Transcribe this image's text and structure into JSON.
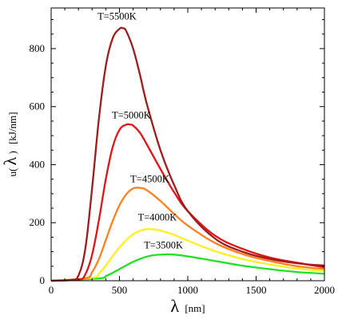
{
  "chart_data": {
    "type": "line",
    "title": "",
    "xlabel_symbol": "λ",
    "xlabel_unit": "[nm]",
    "ylabel_prefix": "u(",
    "ylabel_symbol": "λ",
    "ylabel_suffix": ")",
    "ylabel_unit": "[kJ/nm]",
    "xlim": [
      0,
      2000
    ],
    "ylim": [
      0,
      940
    ],
    "x_ticks": [
      0,
      500,
      1000,
      1500,
      2000
    ],
    "y_ticks": [
      0,
      200,
      400,
      600,
      800
    ],
    "grid": false,
    "series": [
      {
        "name": "T=5500K",
        "color": "#9e1c1c",
        "x": [
          0,
          150,
          200,
          250,
          300,
          350,
          400,
          450,
          500,
          527,
          550,
          600,
          650,
          700,
          800,
          900,
          1000,
          1200,
          1400,
          1600,
          1800,
          2000
        ],
        "y": [
          0,
          3,
          18,
          110,
          320,
          560,
          740,
          835,
          868,
          870,
          860,
          800,
          710,
          610,
          450,
          330,
          240,
          145,
          100,
          75,
          60,
          52
        ]
      },
      {
        "name": "T=5000K",
        "color": "#e01414",
        "x": [
          0,
          200,
          250,
          300,
          350,
          400,
          450,
          500,
          550,
          580,
          600,
          650,
          700,
          800,
          900,
          1000,
          1200,
          1400,
          1600,
          1800,
          2000
        ],
        "y": [
          0,
          4,
          22,
          90,
          210,
          350,
          460,
          520,
          538,
          538,
          535,
          510,
          470,
          385,
          305,
          240,
          155,
          110,
          80,
          62,
          46
        ]
      },
      {
        "name": "T=4500K",
        "color": "#ff8020",
        "x": [
          0,
          250,
          300,
          350,
          400,
          450,
          500,
          550,
          600,
          650,
          700,
          800,
          900,
          1000,
          1200,
          1400,
          1600,
          1800,
          2000
        ],
        "y": [
          0,
          8,
          30,
          75,
          140,
          205,
          260,
          298,
          318,
          320,
          312,
          275,
          230,
          190,
          130,
          92,
          68,
          50,
          40
        ]
      },
      {
        "name": "T=4000K",
        "color": "#ffee20",
        "x": [
          0,
          300,
          350,
          400,
          450,
          500,
          550,
          600,
          650,
          700,
          750,
          800,
          900,
          1000,
          1200,
          1400,
          1600,
          1800,
          2000
        ],
        "y": [
          0,
          10,
          25,
          52,
          85,
          115,
          140,
          160,
          172,
          178,
          177,
          173,
          158,
          138,
          102,
          75,
          56,
          42,
          33
        ]
      },
      {
        "name": "T=3500K",
        "color": "#22e022",
        "x": [
          0,
          350,
          400,
          450,
          500,
          550,
          600,
          650,
          700,
          750,
          800,
          850,
          900,
          1000,
          1200,
          1400,
          1600,
          1800,
          2000
        ],
        "y": [
          0,
          8,
          16,
          27,
          40,
          53,
          65,
          75,
          83,
          88,
          90,
          91,
          90,
          84,
          68,
          52,
          40,
          30,
          24
        ]
      }
    ]
  }
}
